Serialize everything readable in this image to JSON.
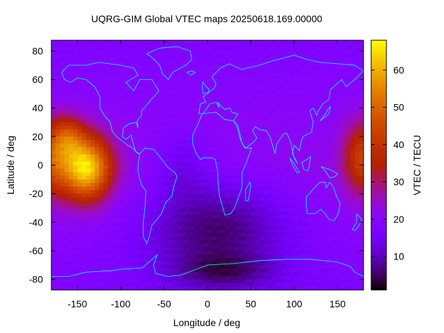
{
  "chart_data": {
    "type": "heatmap",
    "title": "UQRG-GIM Global VTEC maps 20250618.169.00000",
    "xlabel": "Longitude / deg",
    "ylabel": "Latitude / deg",
    "colorbar_label": "VTEC / TECU",
    "xlim": [
      -180,
      180
    ],
    "ylim": [
      -87.5,
      87.5
    ],
    "x_ticks": [
      -150,
      -100,
      -50,
      0,
      50,
      100,
      150
    ],
    "y_ticks": [
      -80,
      -60,
      -40,
      -20,
      0,
      20,
      40,
      60,
      80
    ],
    "colorbar_range": [
      1,
      68
    ],
    "colorbar_ticks": [
      10,
      20,
      30,
      40,
      50,
      60
    ],
    "colormap": "gnuplot-pm3d-rgbformulae-7-5-15",
    "coastline_color": "#00ffff",
    "grid": false,
    "legend": "colorbar-right",
    "grid_spacing": {
      "lon_step": 5,
      "lat_step": 2.5
    },
    "vtec_field_features": [
      {
        "region": "eastern Pacific (equatorial anomaly crest)",
        "center_lon": -140,
        "center_lat": 0,
        "peak_vtec": 66
      },
      {
        "region": "western Pacific edge",
        "center_lon": 178,
        "center_lat": 5,
        "peak_vtec": 42
      },
      {
        "region": "South Atlantic / Southern Ocean trough",
        "center_lon": 20,
        "center_lat": -70,
        "min_vtec": 2
      },
      {
        "region": "background mid-latitudes",
        "typical_vtec": 20
      }
    ]
  }
}
